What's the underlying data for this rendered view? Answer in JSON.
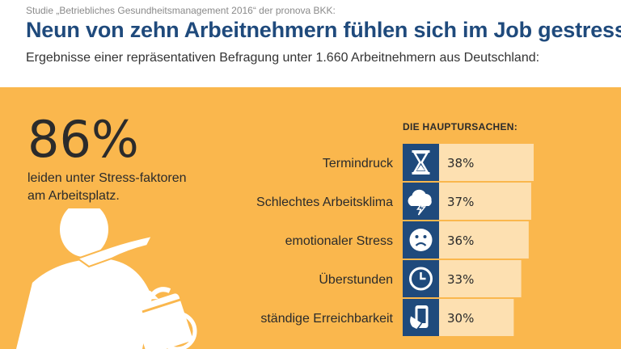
{
  "header": {
    "source": "Studie „Betriebliches Gesundheitsmanagement 2016“ der pronova BKK:",
    "title": "Neun von zehn Arbeitnehmern fühlen sich im Job gestresst",
    "subtitle": "Ergebnisse einer repräsentativen Befragung unter 1.660 Arbeitnehmern aus Deutschland:"
  },
  "highlight": {
    "value": "86%",
    "description": "leiden unter Stress-faktoren am Arbeitsplatz."
  },
  "colors": {
    "title": "#1f4a7c",
    "background": "#fab74d",
    "bar": "#fde0b1",
    "icon_box": "#1f4a7c",
    "illustration": "#ffffff"
  },
  "chart_data": {
    "type": "bar",
    "orientation": "horizontal",
    "title": "DIE HAUPTURSACHEN:",
    "categories": [
      "Termindruck",
      "Schlechtes Arbeitsklima",
      "emotionaler Stress",
      "Überstunden",
      "ständige Erreichbarkeit"
    ],
    "values": [
      38,
      37,
      36,
      33,
      30
    ],
    "value_labels": [
      "38%",
      "37%",
      "36%",
      "33%",
      "30%"
    ],
    "icons": [
      "hourglass-icon",
      "storm-cloud-icon",
      "sad-face-icon",
      "clock-icon",
      "smartphone-icon"
    ],
    "unit": "%",
    "xlim": [
      0,
      38
    ]
  }
}
